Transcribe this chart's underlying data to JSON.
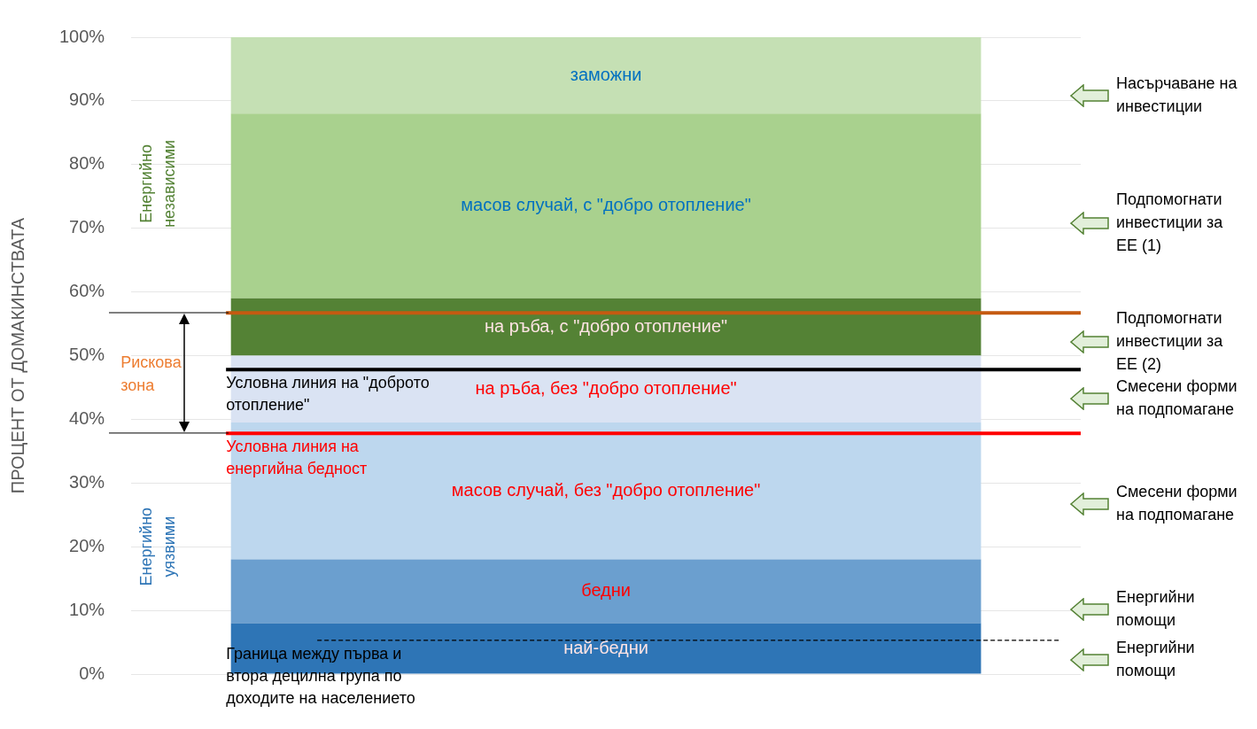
{
  "chart_data": {
    "type": "bar",
    "stacked": true,
    "categories": [
      null
    ],
    "ylabel": "ПРОЦЕНТ ОТ ДОМАКИНСТВАТА",
    "ylim": [
      0,
      100
    ],
    "yticks": [
      {
        "value": 0,
        "label": "0%"
      },
      {
        "value": 10,
        "label": "10%"
      },
      {
        "value": 20,
        "label": "20%"
      },
      {
        "value": 30,
        "label": "30%"
      },
      {
        "value": 40,
        "label": "40%"
      },
      {
        "value": 50,
        "label": "50%"
      },
      {
        "value": 60,
        "label": "60%"
      },
      {
        "value": 70,
        "label": "70%"
      },
      {
        "value": 80,
        "label": "80%"
      },
      {
        "value": 90,
        "label": "90%"
      },
      {
        "value": 100,
        "label": "100%"
      }
    ],
    "grid": "y",
    "legend": false,
    "series": [
      {
        "name": "най-бедни",
        "color": "#2e75b6",
        "values": [
          8
        ]
      },
      {
        "name": "бедни",
        "color": "#6b9fcf",
        "values": [
          10
        ]
      },
      {
        "name": "масов случай, без \"добро отопление\"",
        "color": "#bdd7ee",
        "values": [
          21.5
        ]
      },
      {
        "name": "на ръба, без \"добро отопление\"",
        "color": "#dae3f3",
        "values": [
          10.5
        ]
      },
      {
        "name": "на ръба, с \"добро отопление\"",
        "color": "#548235",
        "values": [
          9
        ]
      },
      {
        "name": "масов случай, с \"добро отопление\"",
        "color": "#a9d18e",
        "values": [
          29
        ]
      },
      {
        "name": "заможни",
        "color": "#c5e0b4",
        "values": [
          12
        ]
      }
    ],
    "ref_lines": [
      {
        "axis": "y",
        "value": 56.7,
        "label": null,
        "color": "#c55a11"
      },
      {
        "axis": "y",
        "value": 47.8,
        "label": "Условна линия на \"доброто отопление\"",
        "color": "#000000"
      },
      {
        "axis": "y",
        "value": 37.8,
        "label": "Условна линия на енергийна бедност",
        "color": "#ff0000"
      },
      {
        "axis": "y",
        "value": 5.3,
        "label": "Граница между първа и втора децилна група по доходите на населението",
        "color": "#000000",
        "line_style": "dashed"
      }
    ],
    "annotations": [
      "Енергийно независими",
      "Рискова зона",
      "Енергийно уязвими",
      "Насърчаване на инвестиции",
      "Подпомогнати инвестиции за ЕЕ (1)",
      "Подпомогнати инвестиции за ЕЕ (2)",
      "Смесени форми на подпомагане",
      "Смесени форми на подпомагане",
      "Енергийни помощи",
      "Енергийни помощи"
    ]
  }
}
